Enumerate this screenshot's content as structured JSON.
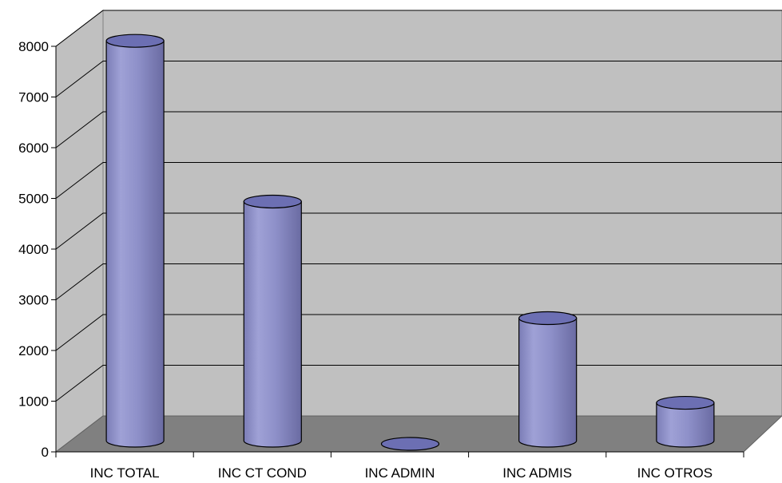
{
  "chart_data": {
    "type": "bar",
    "style": "3d-cylinder",
    "categories": [
      "INC TOTAL",
      "INC CT COND",
      "INC ADMIN",
      "INC ADMIS",
      "INC OTROS"
    ],
    "values": [
      7950,
      4780,
      0,
      2480,
      810
    ],
    "yticks": [
      "0",
      "1000",
      "2000",
      "3000",
      "4000",
      "5000",
      "6000",
      "7000",
      "8000"
    ],
    "ylim": [
      0,
      8000
    ],
    "grid": true,
    "colors": {
      "wall": "#c0c0c0",
      "floor": "#808080",
      "bar_base": "#8f91c9",
      "bar_dark": "#6f70a8",
      "bar_top": "#6c6fb3",
      "grid": "#000000"
    }
  }
}
